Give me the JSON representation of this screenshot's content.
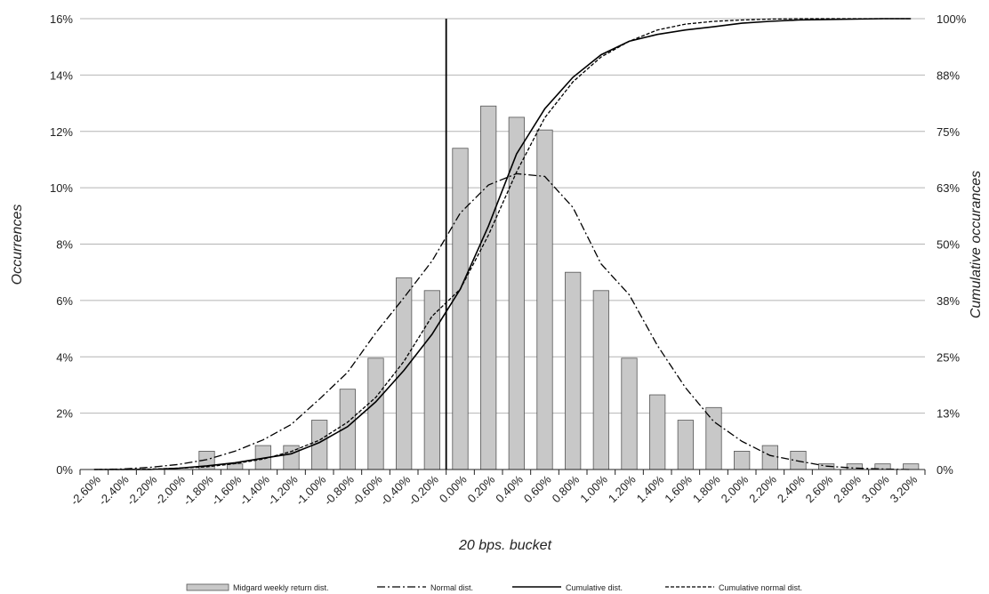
{
  "chart_data": {
    "type": "bar",
    "xlabel": "20 bps. bucket",
    "ylabel": "Occurrences",
    "y2label": "Cumulative occurances",
    "ylim": [
      0,
      16
    ],
    "y2lim": [
      0,
      100
    ],
    "grid": true,
    "legend_position": "bottom",
    "y_ticks": [
      "0%",
      "2%",
      "4%",
      "6%",
      "8%",
      "10%",
      "12%",
      "14%",
      "16%"
    ],
    "y2_ticks": [
      "0%",
      "13%",
      "25%",
      "38%",
      "50%",
      "63%",
      "75%",
      "88%",
      "100%"
    ],
    "categories": [
      "-2.60%",
      "-2.40%",
      "-2.20%",
      "-2.00%",
      "-1.80%",
      "-1.60%",
      "-1.40%",
      "-1.20%",
      "-1.00%",
      "-0.80%",
      "-0.60%",
      "-0.40%",
      "-0.20%",
      "0.00%",
      "0.20%",
      "0.40%",
      "0.60%",
      "0.80%",
      "1.00%",
      "1.20%",
      "1.40%",
      "1.60%",
      "1.80%",
      "2.00%",
      "2.20%",
      "2.40%",
      "2.60%",
      "2.80%",
      "3.00%",
      "3.20%"
    ],
    "series": [
      {
        "name": "Midgard weekly return dist.",
        "kind": "bar",
        "axis": "left",
        "color": "#c8c8c8",
        "values": [
          0,
          0,
          0,
          0,
          0.65,
          0.2,
          0.85,
          0.85,
          1.75,
          2.85,
          3.95,
          6.8,
          6.35,
          11.4,
          12.9,
          12.5,
          12.05,
          7.0,
          6.35,
          3.95,
          2.65,
          1.75,
          2.2,
          0.65,
          0.85,
          0.65,
          0.2,
          0.2,
          0.2,
          0.2
        ]
      },
      {
        "name": "Normal dist.",
        "kind": "line",
        "style": "dash-dot",
        "axis": "left",
        "values": [
          0,
          0.02,
          0.08,
          0.18,
          0.35,
          0.65,
          1.05,
          1.6,
          2.5,
          3.45,
          4.85,
          6.1,
          7.4,
          9.1,
          10.1,
          10.5,
          10.4,
          9.3,
          7.3,
          6.2,
          4.4,
          2.9,
          1.7,
          1.0,
          0.5,
          0.3,
          0.12,
          0.05,
          0.02,
          0
        ]
      },
      {
        "name": "Cumulative dist.",
        "kind": "line",
        "style": "solid",
        "axis": "right",
        "values": [
          0,
          0,
          0,
          0.3,
          0.8,
          1.5,
          2.5,
          3.5,
          6,
          9.5,
          15,
          22,
          30,
          40,
          54,
          70,
          80,
          87,
          92,
          95,
          96.5,
          97.5,
          98.2,
          99,
          99.4,
          99.7,
          99.8,
          99.9,
          100,
          100
        ]
      },
      {
        "name": "Cumulative normal dist.",
        "kind": "line",
        "style": "dashed",
        "axis": "right",
        "values": [
          0,
          0,
          0.1,
          0.3,
          0.6,
          1.3,
          2.3,
          4,
          6.5,
          10.5,
          16,
          24,
          34,
          40,
          52,
          66,
          78,
          86,
          91.5,
          95,
          97.5,
          98.8,
          99.4,
          99.7,
          99.9,
          100,
          100,
          100,
          100,
          100
        ]
      }
    ]
  }
}
